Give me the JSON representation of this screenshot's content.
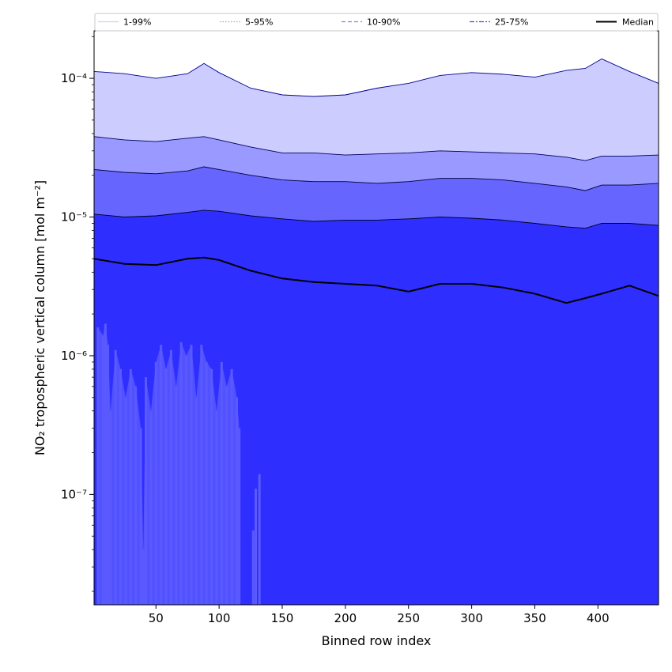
{
  "chart_data": {
    "type": "area",
    "xlabel": "Binned row index",
    "ylabel": "NO₂ tropospheric vertical column [mol m⁻²]",
    "y_scale": "log",
    "xlim": [
      1,
      448
    ],
    "ylim": [
      1.6e-08,
      0.00022
    ],
    "x_ticks": [
      50,
      100,
      150,
      200,
      250,
      300,
      350,
      400
    ],
    "y_ticks": [
      {
        "value": 1e-07,
        "label": "10⁻⁷"
      },
      {
        "value": 1e-06,
        "label": "10⁻⁶"
      },
      {
        "value": 1e-05,
        "label": "10⁻⁵"
      },
      {
        "value": 0.0001,
        "label": "10⁻⁴"
      }
    ],
    "grid": false,
    "legend_position": "top",
    "x": [
      1,
      25,
      50,
      75,
      88,
      100,
      125,
      150,
      175,
      200,
      225,
      250,
      275,
      300,
      325,
      350,
      375,
      390,
      403,
      425,
      448
    ],
    "bands": [
      {
        "name": "1-99%",
        "color": "#ccccff",
        "line_color": "#000090",
        "line_style": "solid",
        "lower": [
          1.6e-08,
          1.6e-08,
          1.6e-08,
          1.6e-08,
          1.6e-08,
          1.6e-08,
          1.6e-08,
          1.6e-08,
          1.6e-08,
          1.6e-08,
          1.6e-08,
          1.6e-08,
          1.6e-08,
          1.6e-08,
          1.6e-08,
          1.6e-08,
          1.6e-08,
          1.6e-08,
          1.6e-08,
          1.6e-08,
          1.6e-08
        ],
        "upper": [
          0.000112,
          0.000108,
          0.0001,
          0.000108,
          0.000128,
          0.00011,
          8.5e-05,
          7.6e-05,
          7.4e-05,
          7.6e-05,
          8.5e-05,
          9.2e-05,
          0.000105,
          0.00011,
          0.000107,
          0.000102,
          0.000114,
          0.000118,
          0.000138,
          0.000112,
          9.2e-05
        ]
      },
      {
        "name": "5-95%",
        "color": "#9999ff",
        "line_color": "#000060",
        "line_style": "solid",
        "lower": [
          1.6e-08,
          1.6e-08,
          1.6e-08,
          1.6e-08,
          1.6e-08,
          1.6e-08,
          1.6e-08,
          1.6e-08,
          1.6e-08,
          1.6e-08,
          1.6e-08,
          1.6e-08,
          1.6e-08,
          1.6e-08,
          1.6e-08,
          1.6e-08,
          1.6e-08,
          1.6e-08,
          1.6e-08,
          1.6e-08,
          1.6e-08
        ],
        "upper": [
          3.8e-05,
          3.6e-05,
          3.5e-05,
          3.7e-05,
          3.8e-05,
          3.6e-05,
          3.2e-05,
          2.9e-05,
          2.9e-05,
          2.8e-05,
          2.85e-05,
          2.9e-05,
          3e-05,
          2.95e-05,
          2.9e-05,
          2.85e-05,
          2.7e-05,
          2.55e-05,
          2.75e-05,
          2.75e-05,
          2.8e-05
        ]
      },
      {
        "name": "10-90%",
        "color": "#6666ff",
        "line_color": "#000040",
        "line_style": "solid",
        "lower": [
          1.6e-08,
          1.6e-08,
          1.6e-08,
          1.6e-08,
          1.6e-08,
          1.6e-08,
          1.6e-08,
          1.6e-08,
          1.6e-08,
          1.6e-08,
          1.6e-08,
          1.6e-08,
          1.6e-08,
          1.6e-08,
          1.6e-08,
          1.6e-08,
          1.6e-08,
          1.6e-08,
          1.6e-08,
          1.6e-08,
          1.6e-08
        ],
        "upper": [
          2.2e-05,
          2.1e-05,
          2.05e-05,
          2.15e-05,
          2.3e-05,
          2.2e-05,
          2e-05,
          1.85e-05,
          1.8e-05,
          1.8e-05,
          1.75e-05,
          1.8e-05,
          1.9e-05,
          1.9e-05,
          1.85e-05,
          1.75e-05,
          1.65e-05,
          1.55e-05,
          1.7e-05,
          1.7e-05,
          1.75e-05
        ]
      },
      {
        "name": "25-75%",
        "color": "#2e2eff",
        "line_color": "#000020",
        "line_style": "solid",
        "lower": [
          1.6e-08,
          1.6e-08,
          1.6e-08,
          1.6e-08,
          1.6e-08,
          1.6e-08,
          1.6e-08,
          1.6e-08,
          1.6e-08,
          1.6e-08,
          1.6e-08,
          1.6e-08,
          1.6e-08,
          1.6e-08,
          1.6e-08,
          1.6e-08,
          1.6e-08,
          1.6e-08,
          1.6e-08,
          1.6e-08,
          1.6e-08
        ],
        "upper": [
          1.05e-05,
          1e-05,
          1.02e-05,
          1.08e-05,
          1.12e-05,
          1.1e-05,
          1.02e-05,
          9.7e-06,
          9.3e-06,
          9.5e-06,
          9.5e-06,
          9.7e-06,
          1e-05,
          9.8e-06,
          9.5e-06,
          9e-06,
          8.5e-06,
          8.3e-06,
          9e-06,
          9e-06,
          8.7e-06
        ]
      }
    ],
    "lower_tail": {
      "color": "#5a5aff",
      "x": [
        4,
        8,
        10,
        12,
        14,
        18,
        22,
        26,
        30,
        34,
        38,
        40,
        42,
        46,
        50,
        54,
        58,
        62,
        66,
        70,
        74,
        78,
        82,
        86,
        90,
        94,
        98,
        102,
        106,
        110,
        114,
        116,
        127,
        129,
        132
      ],
      "values": [
        1.6e-06,
        1.4e-06,
        1.7e-06,
        1.2e-06,
        4e-07,
        1.1e-06,
        8e-07,
        5e-07,
        8e-07,
        6e-07,
        3e-07,
        4e-08,
        7e-07,
        4e-07,
        9e-07,
        1.2e-06,
        8e-07,
        1.1e-06,
        6e-07,
        1.25e-06,
        1e-06,
        1.2e-06,
        5e-07,
        1.2e-06,
        9e-07,
        8e-07,
        4e-07,
        9e-07,
        6e-07,
        8e-07,
        5e-07,
        3e-07,
        5.5e-08,
        1.1e-07,
        1.4e-07
      ]
    },
    "series": [
      {
        "name": "Median",
        "color": "#000000",
        "line_style": "solid",
        "values": [
          5e-06,
          4.6e-06,
          4.5e-06,
          5e-06,
          5.1e-06,
          4.9e-06,
          4.1e-06,
          3.6e-06,
          3.4e-06,
          3.3e-06,
          3.2e-06,
          2.9e-06,
          3.3e-06,
          3.3e-06,
          3.1e-06,
          2.8e-06,
          2.4e-06,
          2.6e-06,
          2.8e-06,
          3.2e-06,
          2.7e-06
        ]
      }
    ],
    "legend": [
      {
        "label": "1-99%",
        "color": "#d0d0f8",
        "style": "solid"
      },
      {
        "label": "5-95%",
        "color": "#a0a0e8",
        "style": "dotted"
      },
      {
        "label": "10-90%",
        "color": "#8080f0",
        "style": "dashed"
      },
      {
        "label": "25-75%",
        "color": "#4848e8",
        "style": "dashdot"
      },
      {
        "label": "Median",
        "color": "#000000",
        "style": "solid"
      }
    ]
  }
}
